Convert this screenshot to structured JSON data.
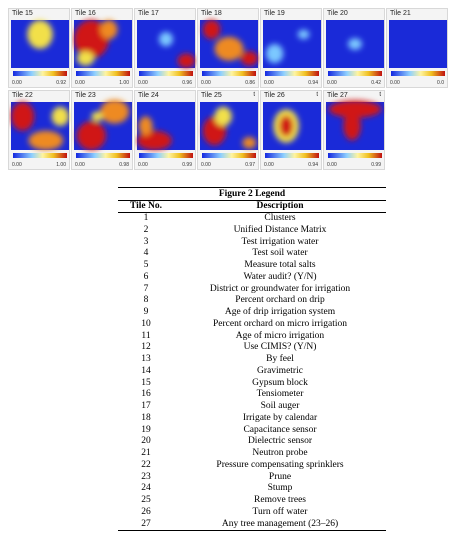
{
  "tiles": [
    {
      "title": "Tile 15",
      "min": "0.00",
      "max": "0.92"
    },
    {
      "title": "Tile 16",
      "min": "0.00",
      "max": "1.00"
    },
    {
      "title": "Tile 17",
      "min": "0.00",
      "max": "0.96"
    },
    {
      "title": "Tile 18",
      "min": "0.00",
      "max": "0.86"
    },
    {
      "title": "Tile 19",
      "min": "0.00",
      "max": "0.94"
    },
    {
      "title": "Tile 20",
      "min": "0.00",
      "max": "0.42"
    },
    {
      "title": "Tile 21",
      "min": "0.00",
      "max": "0.0"
    },
    {
      "title": "Tile 22",
      "min": "0.00",
      "max": "1.00"
    },
    {
      "title": "Tile 23",
      "min": "0.00",
      "max": "0.98"
    },
    {
      "title": "Tile 24",
      "min": "0.00",
      "max": "0.99"
    },
    {
      "title": "Tile 25",
      "corner": "t",
      "min": "0.00",
      "max": "0.97"
    },
    {
      "title": "Tile 26",
      "corner": "t",
      "min": "0.00",
      "max": "0.94"
    },
    {
      "title": "Tile 27",
      "corner": "t",
      "min": "0.00",
      "max": "0.99"
    }
  ],
  "legend": {
    "title": "Figure 2 Legend",
    "headers": [
      "Tile No.",
      "Description"
    ],
    "rows": [
      [
        "1",
        "Clusters"
      ],
      [
        "2",
        "Unified Distance Matrix"
      ],
      [
        "3",
        "Test irrigation water"
      ],
      [
        "4",
        "Test soil water"
      ],
      [
        "5",
        "Measure total salts"
      ],
      [
        "6",
        "Water audit? (Y/N)"
      ],
      [
        "7",
        "District or groundwater for irrigation"
      ],
      [
        "8",
        "Percent orchard on drip"
      ],
      [
        "9",
        "Age of drip irrigation system"
      ],
      [
        "10",
        "Percent orchard on micro irrigation"
      ],
      [
        "11",
        "Age of micro irrigation"
      ],
      [
        "12",
        "Use CIMIS? (Y/N)"
      ],
      [
        "13",
        "By feel"
      ],
      [
        "14",
        "Gravimetric"
      ],
      [
        "15",
        "Gypsum block"
      ],
      [
        "16",
        "Tensiometer"
      ],
      [
        "17",
        "Soil auger"
      ],
      [
        "18",
        "Irrigate by calendar"
      ],
      [
        "19",
        "Capacitance sensor"
      ],
      [
        "20",
        "Dielectric sensor"
      ],
      [
        "21",
        "Neutron probe"
      ],
      [
        "22",
        "Pressure compensating sprinklers"
      ],
      [
        "23",
        "Prune"
      ],
      [
        "24",
        "Stump"
      ],
      [
        "25",
        "Remove trees"
      ],
      [
        "26",
        "Turn off water"
      ],
      [
        "27",
        "Any tree management (23–26)"
      ]
    ]
  }
}
